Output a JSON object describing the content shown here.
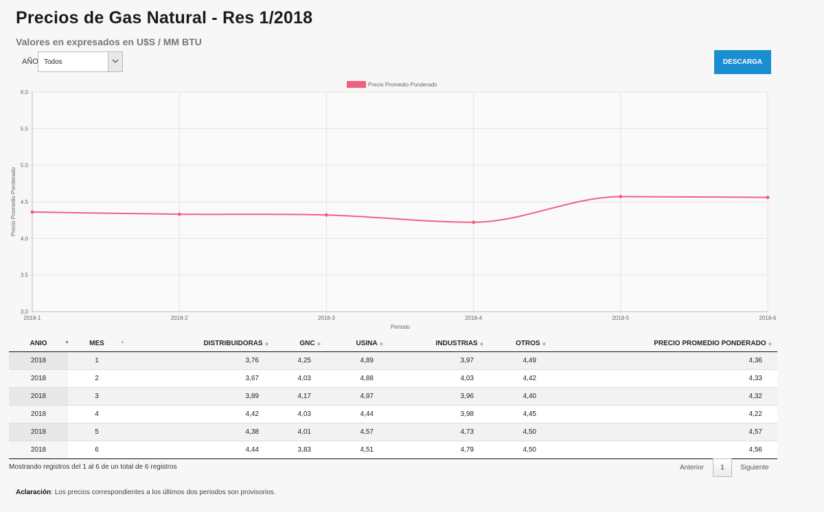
{
  "header": {
    "title": "Precios de Gas Natural - Res 1/2018",
    "subtitle": "Valores en expresados en U$S / MM BTU"
  },
  "filter": {
    "label": "AÑO",
    "selected": "Todos"
  },
  "download_label": "DESCARGA",
  "chart_data": {
    "type": "line",
    "categories": [
      "2018-1",
      "2018-2",
      "2018-3",
      "2018-4",
      "2018-5",
      "2018-6"
    ],
    "series": [
      {
        "name": "Precio Promedio Ponderado",
        "values": [
          4.36,
          4.33,
          4.32,
          4.22,
          4.57,
          4.56
        ],
        "color": "#f06080"
      }
    ],
    "xlabel": "Período",
    "ylabel": "Precio Promedio Ponderado",
    "ylim": [
      3.0,
      6.0
    ],
    "yticks": [
      "3.0",
      "3.5",
      "4.0",
      "4.5",
      "5.0",
      "5.5",
      "6.0"
    ],
    "grid": true,
    "legend": "top-center"
  },
  "table": {
    "columns": [
      "ANIO",
      "MES",
      "DISTRIBUIDORAS",
      "GNC",
      "USINA",
      "INDUSTRIAS",
      "OTROS",
      "PRECIO PROMEDIO PONDERADO"
    ],
    "rows": [
      [
        "2018",
        "1",
        "3,76",
        "4,25",
        "4,89",
        "3,97",
        "4,49",
        "4,36"
      ],
      [
        "2018",
        "2",
        "3,67",
        "4,03",
        "4,88",
        "4,03",
        "4,42",
        "4,33"
      ],
      [
        "2018",
        "3",
        "3,89",
        "4,17",
        "4,97",
        "3,96",
        "4,40",
        "4,32"
      ],
      [
        "2018",
        "4",
        "4,42",
        "4,03",
        "4,44",
        "3,98",
        "4,45",
        "4,22"
      ],
      [
        "2018",
        "5",
        "4,38",
        "4,01",
        "4,57",
        "4,73",
        "4,50",
        "4,57"
      ],
      [
        "2018",
        "6",
        "4,44",
        "3,83",
        "4,51",
        "4,79",
        "4,50",
        "4,56"
      ]
    ]
  },
  "footer": {
    "info": "Mostrando registros del 1 al 6 de un total de 6 registros",
    "prev": "Anterior",
    "page": "1",
    "next": "Siguiente",
    "note_label": "Aclaración",
    "note_text": ": Los precios correspondientes a los últimos dos periodos son provisorios."
  }
}
